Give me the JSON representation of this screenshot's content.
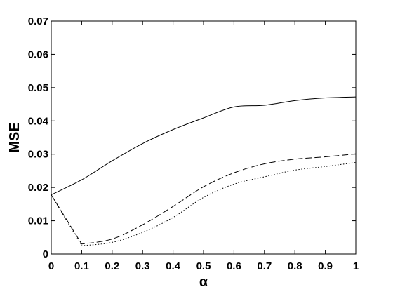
{
  "chart_data": {
    "type": "line",
    "title": "",
    "xlabel": "α",
    "ylabel": "MSE",
    "xlim": [
      0,
      1
    ],
    "ylim": [
      0,
      0.07
    ],
    "xticks": [
      0,
      0.1,
      0.2,
      0.3,
      0.4,
      0.5,
      0.6,
      0.7,
      0.8,
      0.9,
      1
    ],
    "xtick_labels": [
      "0",
      "0.1",
      "0.2",
      "0.3",
      "0.4",
      "0.5",
      "0.6",
      "0.7",
      "0.8",
      "0.9",
      "1"
    ],
    "yticks": [
      0,
      0.01,
      0.02,
      0.03,
      0.04,
      0.05,
      0.06,
      0.07
    ],
    "ytick_labels": [
      "0",
      "0.01",
      "0.02",
      "0.03",
      "0.04",
      "0.05",
      "0.06",
      "0.07"
    ],
    "grid": false,
    "legend": "none",
    "x": [
      0,
      0.1,
      0.2,
      0.3,
      0.4,
      0.5,
      0.6,
      0.7,
      0.8,
      0.9,
      1
    ],
    "series": [
      {
        "style": "solid",
        "color": "#000000",
        "values": [
          0.0178,
          0.0223,
          0.028,
          0.0332,
          0.0374,
          0.0409,
          0.0442,
          0.0447,
          0.0461,
          0.0469,
          0.0472
        ]
      },
      {
        "style": "dashed",
        "color": "#000000",
        "values": [
          0.0178,
          0.003,
          0.0045,
          0.0088,
          0.0143,
          0.0202,
          0.0244,
          0.0271,
          0.0285,
          0.0292,
          0.0301
        ]
      },
      {
        "style": "dotted",
        "color": "#000000",
        "values": [
          0.0178,
          0.0025,
          0.0035,
          0.0065,
          0.011,
          0.017,
          0.021,
          0.0232,
          0.0252,
          0.0263,
          0.0275
        ]
      }
    ]
  }
}
